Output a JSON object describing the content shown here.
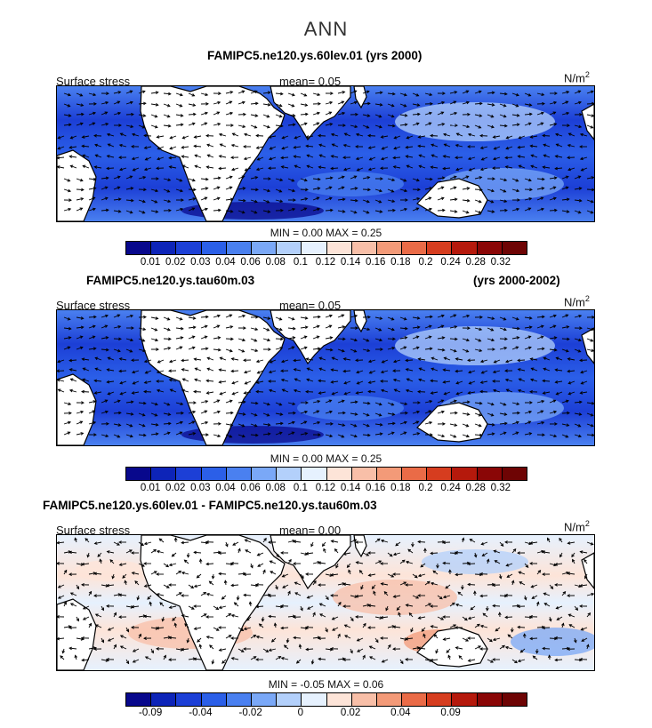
{
  "title": "ANN",
  "panels": [
    {
      "title_left": "FAMIPC5.ne120.ys.60lev.01 (yrs 2000)",
      "title_right": "",
      "variable": "Surface stress",
      "mean_label": "mean=",
      "mean_value": "0.05",
      "units": "N/m",
      "units_exp": "2",
      "min_label": "MIN =",
      "min_value": "0.00",
      "max_label": "MAX =",
      "max_value": "0.25",
      "colorbar": {
        "colors": [
          "#08088c",
          "#0d24b8",
          "#1c3fd6",
          "#2b5fe8",
          "#4a80f0",
          "#7aa8f7",
          "#b3d0fb",
          "#e6f1fe",
          "#fde4d8",
          "#f8bfa8",
          "#f39a78",
          "#ea6b47",
          "#d63d1f",
          "#b5190c",
          "#8a0606",
          "#6e0404"
        ],
        "ticks": [
          "0.01",
          "0.02",
          "0.03",
          "0.04",
          "0.06",
          "0.08",
          "0.1",
          "0.12",
          "0.14",
          "0.16",
          "0.18",
          "0.2",
          "0.24",
          "0.28",
          "0.32"
        ]
      }
    },
    {
      "title_left": "FAMIPC5.ne120.ys.tau60m.03",
      "title_right": "(yrs 2000-2002)",
      "variable": "Surface stress",
      "mean_label": "mean=",
      "mean_value": "0.05",
      "units": "N/m",
      "units_exp": "2",
      "min_label": "MIN =",
      "min_value": "0.00",
      "max_label": "MAX =",
      "max_value": "0.25",
      "colorbar": {
        "colors": [
          "#08088c",
          "#0d24b8",
          "#1c3fd6",
          "#2b5fe8",
          "#4a80f0",
          "#7aa8f7",
          "#b3d0fb",
          "#e6f1fe",
          "#fde4d8",
          "#f8bfa8",
          "#f39a78",
          "#ea6b47",
          "#d63d1f",
          "#b5190c",
          "#8a0606",
          "#6e0404"
        ],
        "ticks": [
          "0.01",
          "0.02",
          "0.03",
          "0.04",
          "0.06",
          "0.08",
          "0.1",
          "0.12",
          "0.14",
          "0.16",
          "0.18",
          "0.2",
          "0.24",
          "0.28",
          "0.32"
        ]
      }
    },
    {
      "title_left": "FAMIPC5.ne120.ys.60lev.01 - FAMIPC5.ne120.ys.tau60m.03",
      "title_right": "",
      "variable": "Surface stress",
      "mean_label": "mean=",
      "mean_value": "0.00",
      "units": "N/m",
      "units_exp": "2",
      "min_label": "MIN =",
      "min_value": "-0.05",
      "max_label": "MAX =",
      "max_value": "0.06",
      "colorbar": {
        "colors": [
          "#08088c",
          "#0d24b8",
          "#1c3fd6",
          "#2b5fe8",
          "#4a80f0",
          "#7aa8f7",
          "#b3d0fb",
          "#e6f1fe",
          "#fde4d8",
          "#f8bfa8",
          "#f39a78",
          "#ea6b47",
          "#d63d1f",
          "#b5190c",
          "#8a0606",
          "#6e0404"
        ],
        "ticks": [
          "-0.09",
          "",
          "-0.04",
          "",
          "-0.02",
          "",
          "0",
          "",
          "0.02",
          "",
          "0.04",
          "",
          "0.09",
          "",
          ""
        ]
      }
    }
  ]
}
